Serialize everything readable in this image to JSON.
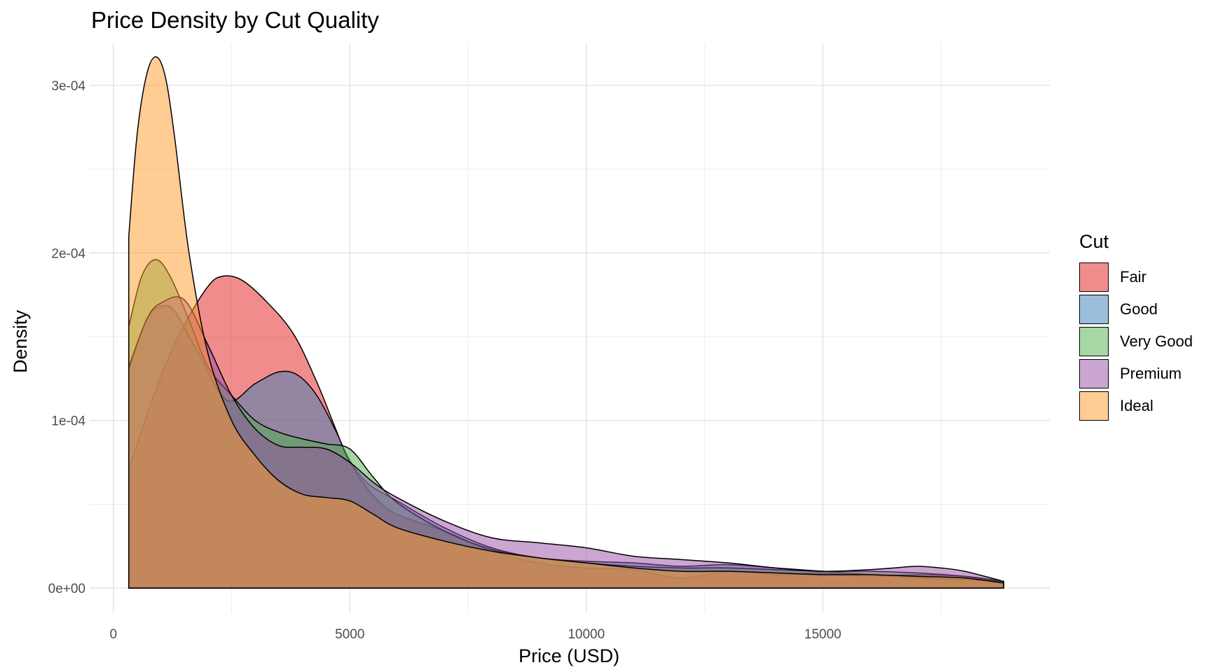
{
  "chart_data": {
    "type": "area",
    "title": "Price Density by Cut Quality",
    "xlabel": "Price (USD)",
    "ylabel": "Density",
    "xlim": [
      -500,
      19800
    ],
    "ylim": [
      -1.5e-05,
      0.000325
    ],
    "x_ticks": [
      {
        "value": 0,
        "label": "0"
      },
      {
        "value": 5000,
        "label": "5000"
      },
      {
        "value": 10000,
        "label": "10000"
      },
      {
        "value": 15000,
        "label": "15000"
      }
    ],
    "y_ticks": [
      {
        "value": 0,
        "label": "0e+00"
      },
      {
        "value": 0.0001,
        "label": "1e-04"
      },
      {
        "value": 0.0002,
        "label": "2e-04"
      },
      {
        "value": 0.0003,
        "label": "3e-04"
      }
    ],
    "grid": true,
    "legend_title": "Cut",
    "legend_position": "right",
    "series": [
      {
        "name": "Fair",
        "color": "#E41A1C",
        "x": [
          326,
          1000,
          1500,
          2000,
          2300,
          2700,
          3200,
          3800,
          4300,
          4700,
          5000,
          5500,
          6000,
          7000,
          8000,
          9000,
          10000,
          11000,
          12000,
          13000,
          14000,
          15000,
          16000,
          17000,
          18000,
          18823
        ],
        "y": [
          7.1e-05,
          0.000126,
          0.000157,
          0.00018,
          0.000186,
          0.000184,
          0.000172,
          0.000152,
          0.000123,
          9.5e-05,
          7.5e-05,
          5.5e-05,
          4.4e-05,
          3.4e-05,
          2.2e-05,
          1.5e-05,
          1.2e-05,
          1.1e-05,
          6e-06,
          1e-05,
          8e-06,
          9e-06,
          7e-06,
          8e-06,
          7e-06,
          4e-06
        ]
      },
      {
        "name": "Good",
        "color": "#377EB8",
        "x": [
          326,
          700,
          1000,
          1300,
          1800,
          2400,
          3000,
          3500,
          3900,
          4300,
          4700,
          5000,
          5400,
          6000,
          7000,
          8000,
          9000,
          10000,
          11000,
          12000,
          13000,
          14000,
          15000,
          16000,
          17000,
          18000,
          18823
        ],
        "y": [
          0.00013,
          0.00016,
          0.000168,
          0.000165,
          0.00014,
          0.000112,
          0.000122,
          0.000129,
          0.000127,
          0.000115,
          9.4e-05,
          7.6e-05,
          6.2e-05,
          5.2e-05,
          3.6e-05,
          2.4e-05,
          1.8e-05,
          1.6e-05,
          1.5e-05,
          1.3e-05,
          1.4e-05,
          1.2e-05,
          1e-05,
          8e-06,
          6e-06,
          5e-06,
          4e-06
        ]
      },
      {
        "name": "Very Good",
        "color": "#4DAF4A",
        "x": [
          326,
          600,
          900,
          1200,
          1600,
          2000,
          2500,
          3000,
          3500,
          4000,
          4500,
          5000,
          5500,
          6000,
          7000,
          8000,
          9000,
          10000,
          11000,
          12000,
          13000,
          14000,
          15000,
          16000,
          17000,
          18000,
          18823
        ],
        "y": [
          0.000156,
          0.000186,
          0.000196,
          0.000186,
          0.00016,
          0.000132,
          0.000115,
          0.0001,
          9.3e-05,
          8.9e-05,
          8.6e-05,
          8.3e-05,
          6.6e-05,
          5.1e-05,
          3.4e-05,
          2.3e-05,
          1.8e-05,
          1.5e-05,
          1.3e-05,
          1.2e-05,
          1.2e-05,
          1.1e-05,
          1e-05,
          1e-05,
          9e-06,
          7e-06,
          4e-06
        ]
      },
      {
        "name": "Premium",
        "color": "#984EA3",
        "x": [
          326,
          700,
          1000,
          1500,
          2000,
          2500,
          3000,
          3500,
          4000,
          4500,
          5000,
          5500,
          6000,
          7000,
          8000,
          9000,
          10000,
          11000,
          12000,
          13000,
          14000,
          15000,
          16000,
          16500,
          17000,
          17500,
          18000,
          18823
        ],
        "y": [
          0.000132,
          0.00016,
          0.00017,
          0.000172,
          0.000145,
          0.000115,
          9.5e-05,
          8.5e-05,
          8.4e-05,
          8.3e-05,
          7.5e-05,
          6.3e-05,
          5.4e-05,
          4e-05,
          3e-05,
          2.7e-05,
          2.4e-05,
          1.9e-05,
          1.7e-05,
          1.5e-05,
          1.2e-05,
          1e-05,
          1.1e-05,
          1.2e-05,
          1.3e-05,
          1.2e-05,
          1e-05,
          4e-06
        ]
      },
      {
        "name": "Ideal",
        "color": "#FF9A2A",
        "x": [
          326,
          500,
          700,
          900,
          1100,
          1300,
          1600,
          2000,
          2500,
          3000,
          3500,
          4000,
          4500,
          5000,
          5500,
          6000,
          7000,
          8000,
          9000,
          10000,
          11000,
          12000,
          13000,
          14000,
          15000,
          16000,
          17000,
          18000,
          18823
        ],
        "y": [
          0.00021,
          0.00027,
          0.000306,
          0.000317,
          0.000305,
          0.000268,
          0.0002,
          0.00014,
          0.0001,
          7.9e-05,
          6.4e-05,
          5.6e-05,
          5.4e-05,
          5.2e-05,
          4.4e-05,
          3.6e-05,
          2.8e-05,
          2.2e-05,
          1.8e-05,
          1.5e-05,
          1.2e-05,
          1e-05,
          1e-05,
          9e-06,
          8e-06,
          8e-06,
          7e-06,
          6e-06,
          3e-06
        ]
      }
    ]
  }
}
